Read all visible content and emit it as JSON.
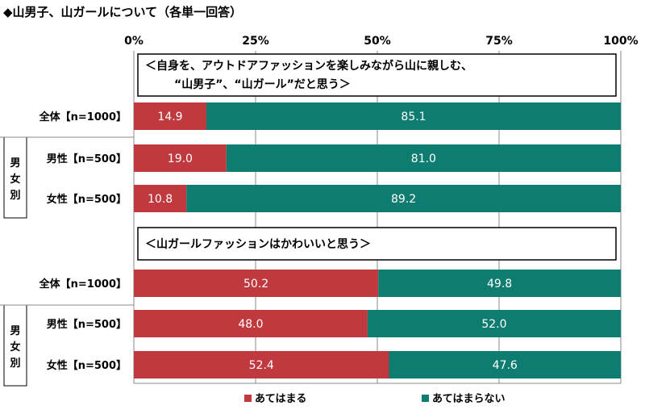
{
  "title": "◆山男子、山ガールについて（各単一回答）",
  "colors": {
    "agree": "#C0393F",
    "disagree": "#0E7C70"
  },
  "chart_data": {
    "type": "bar",
    "stacked": true,
    "orientation": "horizontal",
    "xlim": [
      0,
      100
    ],
    "x_ticks": [
      "0%",
      "25%",
      "50%",
      "75%",
      "100%"
    ],
    "legend": [
      "あてはまる",
      "あてはまらない"
    ],
    "group_label": "男女別",
    "questions": [
      {
        "text_lines": [
          "＜自身を、アウトドアファッションを楽しみながら山に親しむ、",
          "“山男子”、“山ガール”だと思う＞"
        ],
        "rows": [
          {
            "label": "全体【n=1000】",
            "values": [
              14.9,
              85.1
            ],
            "value_labels": [
              "14.9",
              "85.1"
            ]
          },
          {
            "label": "男性【n=500】",
            "values": [
              19.0,
              81.0
            ],
            "value_labels": [
              "19.0",
              "81.0"
            ]
          },
          {
            "label": "女性【n=500】",
            "values": [
              10.8,
              89.2
            ],
            "value_labels": [
              "10.8",
              "89.2"
            ]
          }
        ]
      },
      {
        "text_lines": [
          "＜山ガールファッションはかわいいと思う＞"
        ],
        "rows": [
          {
            "label": "全体【n=1000】",
            "values": [
              50.2,
              49.8
            ],
            "value_labels": [
              "50.2",
              "49.8"
            ]
          },
          {
            "label": "男性【n=500】",
            "values": [
              48.0,
              52.0
            ],
            "value_labels": [
              "48.0",
              "52.0"
            ]
          },
          {
            "label": "女性【n=500】",
            "values": [
              52.4,
              47.6
            ],
            "value_labels": [
              "52.4",
              "47.6"
            ]
          }
        ]
      }
    ]
  }
}
